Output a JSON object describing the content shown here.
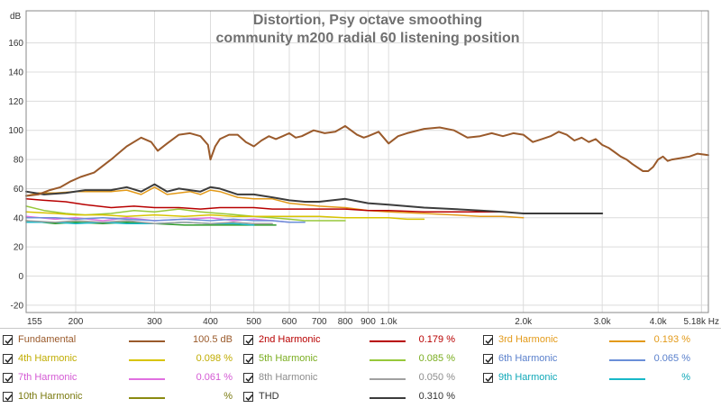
{
  "chart_data": {
    "type": "line",
    "title": "Distortion, Psy octave smoothing",
    "subtitle": "community m200 radial 60 listening position",
    "ylabel": "dB",
    "xlabel": "",
    "xscale": "log",
    "xunit": "Hz",
    "xlim": [
      155,
      5180
    ],
    "ylim": [
      -25,
      182
    ],
    "y_ticks": [
      -20,
      0,
      20,
      40,
      60,
      80,
      100,
      120,
      140,
      160
    ],
    "x_ticks": [
      {
        "v": 155,
        "label": "155"
      },
      {
        "v": 200,
        "label": "200"
      },
      {
        "v": 300,
        "label": "300"
      },
      {
        "v": 400,
        "label": "400"
      },
      {
        "v": 500,
        "label": "500"
      },
      {
        "v": 600,
        "label": "600"
      },
      {
        "v": 700,
        "label": "700"
      },
      {
        "v": 800,
        "label": "800"
      },
      {
        "v": 900,
        "label": "900"
      },
      {
        "v": 1000,
        "label": "1.0k"
      },
      {
        "v": 2000,
        "label": "2.0k"
      },
      {
        "v": 3000,
        "label": "3.0k"
      },
      {
        "v": 4000,
        "label": "4.0k"
      },
      {
        "v": 5180,
        "label": "5.18k Hz"
      }
    ],
    "grid": true,
    "legend_position": "bottom",
    "series": [
      {
        "name": "Fundamental",
        "color": "#9a5a2b",
        "width": 2,
        "x": [
          155,
          165,
          175,
          185,
          195,
          205,
          220,
          240,
          260,
          280,
          295,
          305,
          320,
          340,
          360,
          380,
          395,
          400,
          410,
          420,
          440,
          460,
          480,
          500,
          520,
          540,
          560,
          580,
          600,
          620,
          640,
          680,
          720,
          760,
          800,
          850,
          880,
          900,
          950,
          1000,
          1050,
          1100,
          1200,
          1300,
          1400,
          1500,
          1600,
          1700,
          1800,
          1900,
          2000,
          2100,
          2200,
          2300,
          2400,
          2500,
          2600,
          2700,
          2800,
          2900,
          3000,
          3100,
          3200,
          3300,
          3400,
          3500,
          3700,
          3800,
          3900,
          4000,
          4100,
          4200,
          4300,
          4500,
          4700,
          4900,
          5180
        ],
        "y": [
          55,
          56,
          59,
          61,
          65,
          68,
          71,
          80,
          89,
          95,
          92,
          86,
          91,
          97,
          98,
          96,
          90,
          80,
          89,
          94,
          97,
          97,
          92,
          89,
          93,
          96,
          94,
          96,
          98,
          95,
          96,
          100,
          98,
          99,
          103,
          97,
          95,
          96,
          99,
          91,
          96,
          98,
          101,
          102,
          100,
          95,
          96,
          98,
          96,
          98,
          97,
          92,
          94,
          96,
          99,
          97,
          93,
          95,
          92,
          94,
          90,
          88,
          85,
          82,
          80,
          77,
          72,
          72,
          75,
          80,
          82,
          79,
          80,
          81,
          82,
          84,
          83
        ]
      },
      {
        "name": "2nd Harmonic",
        "color": "#b80000",
        "width": 1.5,
        "x": [
          155,
          170,
          190,
          210,
          240,
          270,
          300,
          340,
          380,
          420,
          460,
          500,
          550,
          600,
          700,
          800,
          900,
          1000,
          1200,
          1400,
          1600,
          1800
        ],
        "y": [
          53,
          52,
          51,
          49,
          47,
          48,
          47,
          47,
          46,
          47,
          47,
          47,
          46,
          46,
          46,
          46,
          45,
          45,
          44,
          44,
          44,
          44
        ]
      },
      {
        "name": "3rd Harmonic",
        "color": "#e39a19",
        "width": 1.5,
        "x": [
          155,
          165,
          180,
          200,
          220,
          240,
          260,
          280,
          300,
          320,
          340,
          360,
          380,
          400,
          420,
          460,
          500,
          550,
          600,
          700,
          800,
          900,
          1000,
          1200,
          1400,
          1600,
          1800,
          2000
        ],
        "y": [
          55,
          57,
          57,
          58,
          58,
          58,
          59,
          56,
          61,
          56,
          57,
          58,
          56,
          59,
          58,
          54,
          53,
          53,
          50,
          48,
          47,
          45,
          44,
          43,
          42,
          41,
          41,
          40
        ]
      },
      {
        "name": "4th Harmonic",
        "color": "#d8c400",
        "width": 1.5,
        "x": [
          155,
          180,
          200,
          230,
          260,
          300,
          350,
          400,
          450,
          500,
          550,
          600,
          700,
          800,
          900,
          1000,
          1100,
          1200
        ],
        "y": [
          44,
          43,
          42,
          42,
          41,
          42,
          41,
          42,
          41,
          41,
          41,
          41,
          41,
          40,
          40,
          40,
          39,
          39
        ]
      },
      {
        "name": "5th Harmonic",
        "color": "#97c83a",
        "width": 1.5,
        "x": [
          155,
          170,
          190,
          210,
          240,
          270,
          300,
          340,
          380,
          420,
          460,
          500,
          550,
          600,
          650,
          700,
          800
        ],
        "y": [
          48,
          45,
          43,
          42,
          43,
          45,
          44,
          46,
          44,
          43,
          42,
          41,
          40,
          39,
          38,
          38,
          38
        ]
      },
      {
        "name": "6th Harmonic",
        "color": "#6a8fd8",
        "width": 1.5,
        "x": [
          155,
          180,
          200,
          230,
          260,
          300,
          350,
          400,
          450,
          500,
          550,
          600,
          650
        ],
        "y": [
          40,
          40,
          39,
          40,
          39,
          38,
          39,
          38,
          39,
          38,
          38,
          37,
          37
        ]
      },
      {
        "name": "7th Harmonic",
        "color": "#e070e0",
        "width": 1.5,
        "x": [
          155,
          180,
          200,
          230,
          260,
          300,
          350,
          400,
          450,
          500,
          550,
          600
        ],
        "y": [
          41,
          39,
          40,
          38,
          40,
          38,
          39,
          40,
          38,
          39,
          38,
          37
        ]
      },
      {
        "name": "8th Harmonic",
        "color": "#a0a0a0",
        "width": 1.5,
        "x": [
          155,
          180,
          200,
          230,
          260,
          300,
          350,
          400,
          450,
          500,
          550
        ],
        "y": [
          38,
          37,
          38,
          37,
          38,
          36,
          37,
          36,
          37,
          36,
          36
        ]
      },
      {
        "name": "9th Harmonic",
        "color": "#18b8c8",
        "width": 1.5,
        "x": [
          155,
          180,
          200,
          230,
          260,
          300,
          350,
          400,
          450,
          500
        ],
        "y": [
          37,
          37,
          36,
          37,
          36,
          36,
          37,
          36,
          36,
          35
        ]
      },
      {
        "name": "10th Harmonic",
        "color": "#2e9a2a",
        "width": 1.5,
        "x": [
          155,
          180,
          200,
          230,
          260,
          300,
          350,
          400,
          450,
          500,
          560
        ],
        "y": [
          38,
          36,
          37,
          36,
          37,
          36,
          35,
          35,
          35,
          35,
          35
        ]
      },
      {
        "name": "THD",
        "color": "#3c3c3c",
        "width": 2,
        "x": [
          155,
          170,
          190,
          210,
          240,
          260,
          280,
          300,
          320,
          340,
          360,
          380,
          400,
          420,
          460,
          500,
          550,
          600,
          650,
          700,
          800,
          900,
          1000,
          1200,
          1400,
          1600,
          1800,
          2000,
          2200,
          2500,
          3000
        ],
        "y": [
          58,
          56,
          57,
          59,
          59,
          61,
          58,
          63,
          58,
          60,
          59,
          58,
          61,
          60,
          56,
          56,
          54,
          52,
          51,
          51,
          53,
          50,
          49,
          47,
          46,
          45,
          44,
          43,
          43,
          43,
          43
        ]
      }
    ]
  },
  "legend": [
    [
      {
        "name": "Fundamental",
        "value": "100.5 dB",
        "color": "#9a5a2b",
        "text_color": "#9a5a2b"
      },
      {
        "name": "2nd Harmonic",
        "value": "0.179 %",
        "color": "#b80000",
        "text_color": "#b80000"
      },
      {
        "name": "3rd Harmonic",
        "value": "0.193 %",
        "color": "#e39a19",
        "text_color": "#e39a19"
      }
    ],
    [
      {
        "name": "4th Harmonic",
        "value": "0.098 %",
        "color": "#d8c400",
        "text_color": "#c0ac00"
      },
      {
        "name": "5th Harmonic",
        "value": "0.085 %",
        "color": "#97c83a",
        "text_color": "#7aad1f"
      },
      {
        "name": "6th Harmonic",
        "value": "0.065 %",
        "color": "#6a8fd8",
        "text_color": "#5a80cc"
      }
    ],
    [
      {
        "name": "7th Harmonic",
        "value": "0.061 %",
        "color": "#e070e0",
        "text_color": "#d45ad4"
      },
      {
        "name": "8th Harmonic",
        "value": "0.050 %",
        "color": "#a0a0a0",
        "text_color": "#8c8c8c"
      },
      {
        "name": "9th Harmonic",
        "value": "%",
        "color": "#18b8c8",
        "text_color": "#10a8b8"
      }
    ],
    [
      {
        "name": "10th Harmonic",
        "value": "%",
        "color": "#8a8a10",
        "text_color": "#7a7a10"
      },
      {
        "name": "THD",
        "value": "0.310 %",
        "color": "#3c3c3c",
        "text_color": "#333333"
      }
    ]
  ],
  "colors": {
    "grid": "#dcdcdc",
    "axis_text": "#333333",
    "title": "#707070",
    "plot_border": "#888888"
  }
}
